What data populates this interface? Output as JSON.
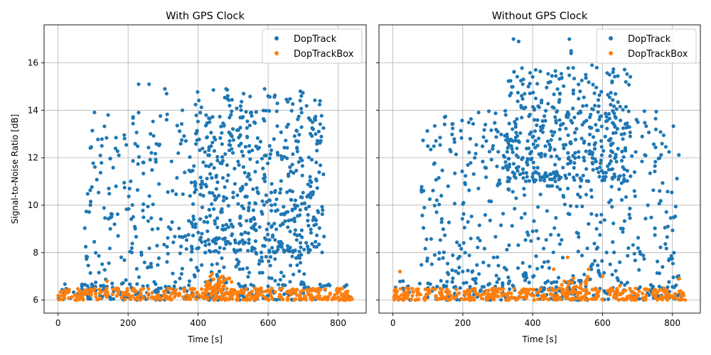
{
  "chart_data": {
    "type": "scatter",
    "sharey": true,
    "ylabel": "Signal-to-Noise Ratio [dB]",
    "ylim": [
      5.45,
      17.6
    ],
    "yticks": [
      6,
      8,
      10,
      12,
      14,
      16
    ],
    "grid": true,
    "legend_position": "top-right",
    "series_colors": {
      "DopTrack": "#1f77b4",
      "DopTrackBox": "#ff7f0e"
    },
    "panels": [
      {
        "title": "With GPS Clock",
        "xlabel": "Time [s]",
        "xlim": [
          -40,
          880
        ],
        "xticks": [
          0,
          200,
          400,
          600,
          800
        ],
        "series": [
          {
            "name": "DopTrack",
            "color": "#1f77b4",
            "clusters": [
              {
                "x0": 75,
                "x1": 740,
                "y0": 6.0,
                "y1": 14.0,
                "n": 520
              },
              {
                "x0": 380,
                "x1": 760,
                "y0": 8.0,
                "y1": 14.9,
                "n": 380
              },
              {
                "x0": 0,
                "x1": 840,
                "y0": 6.0,
                "y1": 6.8,
                "n": 140
              }
            ],
            "points": [
              [
                125,
                12.5
              ],
              [
                230,
                15.1
              ],
              [
                260,
                15.1
              ],
              [
                305,
                14.9
              ],
              [
                310,
                14.7
              ],
              [
                230,
                13.9
              ],
              [
                355,
                14.0
              ],
              [
                480,
                14.9
              ],
              [
                530,
                14.7
              ],
              [
                590,
                14.9
              ],
              [
                600,
                14.6
              ]
            ]
          },
          {
            "name": "DopTrackBox",
            "color": "#ff7f0e",
            "clusters": [
              {
                "x0": 0,
                "x1": 840,
                "y0": 6.0,
                "y1": 6.5,
                "n": 380
              },
              {
                "x0": 420,
                "x1": 500,
                "y0": 6.3,
                "y1": 7.0,
                "n": 40
              }
            ],
            "points": [
              [
                440,
                7.1
              ],
              [
                460,
                6.9
              ],
              [
                140,
                6.8
              ],
              [
                580,
                6.5
              ],
              [
                700,
                6.4
              ]
            ]
          }
        ]
      },
      {
        "title": "Without GPS Clock",
        "xlabel": "Time [s]",
        "xlim": [
          -40,
          880
        ],
        "xticks": [
          0,
          200,
          400,
          600,
          800
        ],
        "series": [
          {
            "name": "DopTrack",
            "color": "#1f77b4",
            "clusters": [
              {
                "x0": 80,
                "x1": 820,
                "y0": 6.0,
                "y1": 14.0,
                "n": 560
              },
              {
                "x0": 320,
                "x1": 680,
                "y0": 11.0,
                "y1": 15.8,
                "n": 380
              },
              {
                "x0": 0,
                "x1": 840,
                "y0": 6.0,
                "y1": 6.8,
                "n": 120
              }
            ],
            "points": [
              [
                345,
                17.0
              ],
              [
                360,
                16.9
              ],
              [
                505,
                17.0
              ],
              [
                510,
                16.5
              ],
              [
                510,
                16.4
              ],
              [
                570,
                15.9
              ],
              [
                630,
                15.6
              ],
              [
                620,
                15.5
              ]
            ]
          },
          {
            "name": "DopTrackBox",
            "color": "#ff7f0e",
            "clusters": [
              {
                "x0": 0,
                "x1": 840,
                "y0": 6.0,
                "y1": 6.5,
                "n": 380
              },
              {
                "x0": 470,
                "x1": 560,
                "y0": 6.2,
                "y1": 7.0,
                "n": 30
              }
            ],
            "points": [
              [
                20,
                7.2
              ],
              [
                500,
                7.8
              ],
              [
                460,
                7.3
              ],
              [
                560,
                7.3
              ],
              [
                600,
                7.0
              ],
              [
                820,
                6.9
              ],
              [
                650,
                6.6
              ]
            ]
          }
        ]
      }
    ]
  }
}
